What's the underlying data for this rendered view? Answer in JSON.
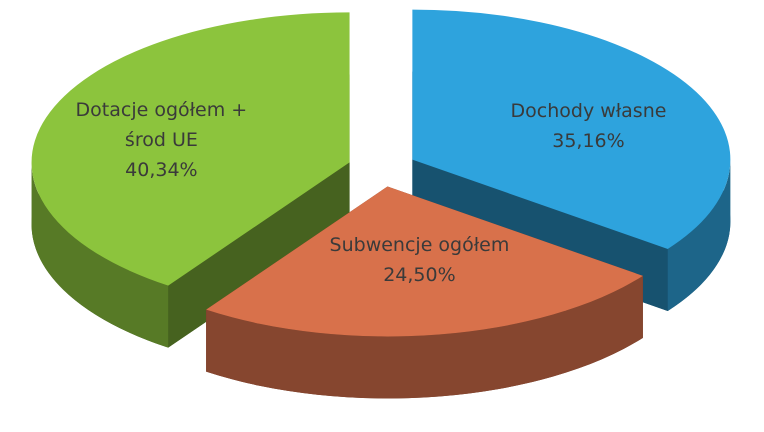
{
  "chart_data": {
    "type": "pie3d",
    "categories": [
      "Dochody własne",
      "Subwencje ogółem",
      "Dotacje ogółem + środ UE"
    ],
    "values": [
      35.16,
      24.5,
      40.34
    ],
    "value_labels": [
      "35,16%",
      "24,50%",
      "40,34%"
    ],
    "colors": [
      "#2ea3dd",
      "#d8714b",
      "#8cc43d"
    ]
  }
}
